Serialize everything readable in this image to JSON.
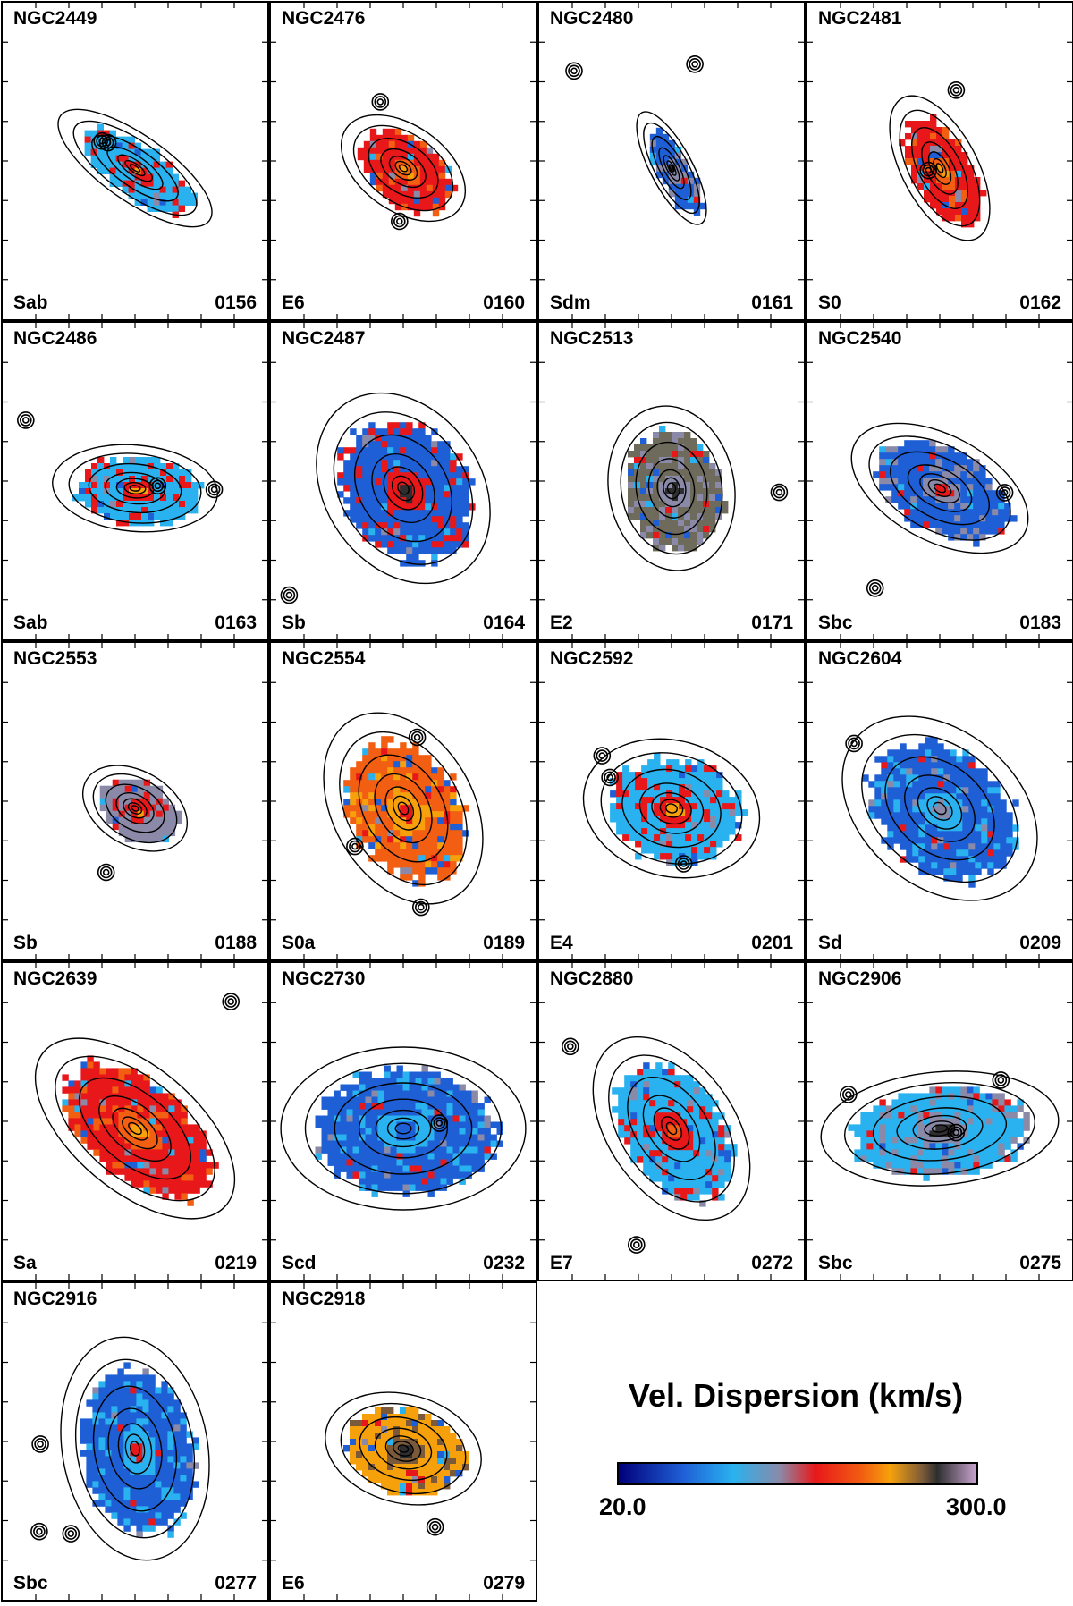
{
  "chart_data": {
    "type": "heatmap",
    "title": "",
    "colorbar": {
      "label": "Vel. Dispersion (km/s)",
      "min": "20.0",
      "max": "300.0",
      "colors": [
        "#00007a",
        "#1f5fd6",
        "#29b2ef",
        "#8a8aa8",
        "#e8181a",
        "#f25e12",
        "#f6a10c",
        "#7a5a3a",
        "#2e2e2e",
        "#c8a3cf"
      ]
    },
    "panels": [
      {
        "name": "NGC2449",
        "type": "Sab",
        "id": "0156",
        "pa": -35,
        "ell": 0.38,
        "size": 0.55,
        "dominant": "#29b2ef",
        "center": "#e8181a",
        "core": "#f6a10c"
      },
      {
        "name": "NGC2476",
        "type": "E6",
        "id": "0160",
        "pa": -35,
        "ell": 0.65,
        "size": 0.42,
        "dominant": "#e8181a",
        "center": "#f25e12",
        "core": "#f6a10c"
      },
      {
        "name": "NGC2480",
        "type": "Sdm",
        "id": "0161",
        "pa": -62,
        "ell": 0.35,
        "size": 0.38,
        "dominant": "#1f5fd6",
        "center": "#8a8aa8",
        "core": "#2e2e2e"
      },
      {
        "name": "NGC2481",
        "type": "S0",
        "id": "0162",
        "pa": -62,
        "ell": 0.5,
        "size": 0.48,
        "dominant": "#e8181a",
        "center": "#f25e12",
        "core": "#f6a10c"
      },
      {
        "name": "NGC2486",
        "type": "Sab",
        "id": "0163",
        "pa": -5,
        "ell": 0.55,
        "size": 0.5,
        "dominant": "#29b2ef",
        "center": "#e8181a",
        "core": "#f6a10c"
      },
      {
        "name": "NGC2487",
        "type": "Sb",
        "id": "0164",
        "pa": -55,
        "ell": 0.8,
        "size": 0.62,
        "dominant": "#1f5fd6",
        "center": "#e8181a",
        "core": "#2e2e2e"
      },
      {
        "name": "NGC2513",
        "type": "E2",
        "id": "0171",
        "pa": -80,
        "ell": 0.8,
        "size": 0.5,
        "dominant": "#6e6a5c",
        "center": "#8a8aa8",
        "core": "#2e2e2e"
      },
      {
        "name": "NGC2540",
        "type": "Sbc",
        "id": "0183",
        "pa": -28,
        "ell": 0.58,
        "size": 0.58,
        "dominant": "#1f5fd6",
        "center": "#8a8aa8",
        "core": "#e8181a"
      },
      {
        "name": "NGC2553",
        "type": "Sb",
        "id": "0188",
        "pa": -30,
        "ell": 0.7,
        "size": 0.34,
        "dominant": "#8a8aa8",
        "center": "#e8181a",
        "core": "#f6a10c"
      },
      {
        "name": "NGC2554",
        "type": "S0a",
        "id": "0189",
        "pa": -60,
        "ell": 0.72,
        "size": 0.62,
        "dominant": "#f25e12",
        "center": "#f6a10c",
        "core": "#e8181a"
      },
      {
        "name": "NGC2592",
        "type": "E4",
        "id": "0201",
        "pa": -15,
        "ell": 0.8,
        "size": 0.54,
        "dominant": "#29b2ef",
        "center": "#e8181a",
        "core": "#f6a10c"
      },
      {
        "name": "NGC2604",
        "type": "Sd",
        "id": "0209",
        "pa": -40,
        "ell": 0.75,
        "size": 0.66,
        "dominant": "#1f5fd6",
        "center": "#29b2ef",
        "core": "#8a8aa8"
      },
      {
        "name": "NGC2639",
        "type": "Sa",
        "id": "0219",
        "pa": -40,
        "ell": 0.55,
        "size": 0.72,
        "dominant": "#e8181a",
        "center": "#f25e12",
        "core": "#f6a10c"
      },
      {
        "name": "NGC2730",
        "type": "Scd",
        "id": "0232",
        "pa": 0,
        "ell": 0.7,
        "size": 0.74,
        "dominant": "#1f5fd6",
        "center": "#29b2ef",
        "core": "#1f5fd6"
      },
      {
        "name": "NGC2880",
        "type": "E7",
        "id": "0272",
        "pa": -55,
        "ell": 0.65,
        "size": 0.62,
        "dominant": "#29b2ef",
        "center": "#e8181a",
        "core": "#f25e12"
      },
      {
        "name": "NGC2906",
        "type": "Sbc",
        "id": "0275",
        "pa": 5,
        "ell": 0.5,
        "size": 0.72,
        "dominant": "#29b2ef",
        "center": "#8a8aa8",
        "core": "#2e2e2e"
      },
      {
        "name": "NGC2916",
        "type": "Sbc",
        "id": "0277",
        "pa": -80,
        "ell": 0.68,
        "size": 0.68,
        "dominant": "#1f5fd6",
        "center": "#29b2ef",
        "core": "#e8181a"
      },
      {
        "name": "NGC2918",
        "type": "E6",
        "id": "0279",
        "pa": -15,
        "ell": 0.72,
        "size": 0.48,
        "dominant": "#f6a10c",
        "center": "#7a5a3a",
        "core": "#2e2e2e"
      }
    ]
  }
}
